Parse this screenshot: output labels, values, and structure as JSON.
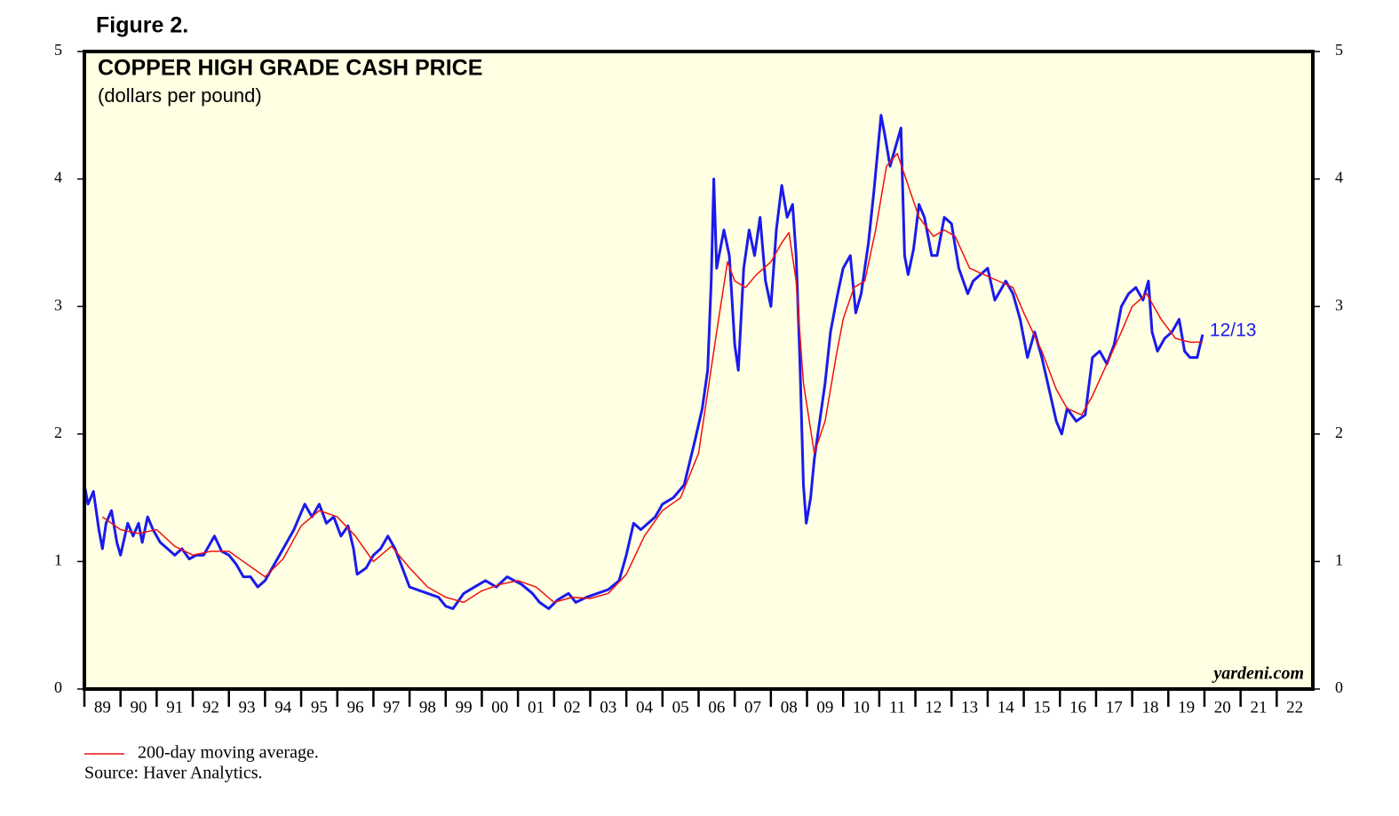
{
  "chart_data": {
    "type": "line",
    "figure_label": "Figure 2.",
    "title": "COPPER HIGH GRADE CASH PRICE",
    "subtitle": "(dollars per pound)",
    "watermark": "yardeni.com",
    "source": "Source: Haver Analytics.",
    "annotation": "12/13",
    "xlim": [
      1989,
      2023
    ],
    "ylim": [
      0,
      5
    ],
    "yticks": [
      0,
      1,
      2,
      3,
      4,
      5
    ],
    "xticks": [
      {
        "value": 1989,
        "label": "89"
      },
      {
        "value": 1990,
        "label": "90"
      },
      {
        "value": 1991,
        "label": "91"
      },
      {
        "value": 1992,
        "label": "92"
      },
      {
        "value": 1993,
        "label": "93"
      },
      {
        "value": 1994,
        "label": "94"
      },
      {
        "value": 1995,
        "label": "95"
      },
      {
        "value": 1996,
        "label": "96"
      },
      {
        "value": 1997,
        "label": "97"
      },
      {
        "value": 1998,
        "label": "98"
      },
      {
        "value": 1999,
        "label": "99"
      },
      {
        "value": 2000,
        "label": "00"
      },
      {
        "value": 2001,
        "label": "01"
      },
      {
        "value": 2002,
        "label": "02"
      },
      {
        "value": 2003,
        "label": "03"
      },
      {
        "value": 2004,
        "label": "04"
      },
      {
        "value": 2005,
        "label": "05"
      },
      {
        "value": 2006,
        "label": "06"
      },
      {
        "value": 2007,
        "label": "07"
      },
      {
        "value": 2008,
        "label": "08"
      },
      {
        "value": 2009,
        "label": "09"
      },
      {
        "value": 2010,
        "label": "10"
      },
      {
        "value": 2011,
        "label": "11"
      },
      {
        "value": 2012,
        "label": "12"
      },
      {
        "value": 2013,
        "label": "13"
      },
      {
        "value": 2014,
        "label": "14"
      },
      {
        "value": 2015,
        "label": "15"
      },
      {
        "value": 2016,
        "label": "16"
      },
      {
        "value": 2017,
        "label": "17"
      },
      {
        "value": 2018,
        "label": "18"
      },
      {
        "value": 2019,
        "label": "19"
      },
      {
        "value": 2020,
        "label": "20"
      },
      {
        "value": 2021,
        "label": "21"
      },
      {
        "value": 2022,
        "label": "22"
      }
    ],
    "series": [
      {
        "color": "#1a1aee",
        "x": [
          1989.0,
          1989.1,
          1989.25,
          1989.4,
          1989.5,
          1989.6,
          1989.75,
          1989.9,
          1990.0,
          1990.2,
          1990.35,
          1990.5,
          1990.6,
          1990.75,
          1990.9,
          1991.1,
          1991.3,
          1991.5,
          1991.7,
          1991.9,
          1992.1,
          1992.3,
          1992.6,
          1992.8,
          1993.0,
          1993.2,
          1993.4,
          1993.6,
          1993.8,
          1994.0,
          1994.2,
          1994.4,
          1994.6,
          1994.8,
          1994.95,
          1995.1,
          1995.3,
          1995.5,
          1995.7,
          1995.9,
          1996.1,
          1996.3,
          1996.45,
          1996.55,
          1996.8,
          1997.0,
          1997.2,
          1997.4,
          1997.6,
          1997.8,
          1998.0,
          1998.2,
          1998.5,
          1998.8,
          1999.0,
          1999.2,
          1999.5,
          1999.8,
          2000.1,
          2000.4,
          2000.7,
          2000.9,
          2001.1,
          2001.4,
          2001.6,
          2001.85,
          2002.1,
          2002.4,
          2002.6,
          2002.9,
          2003.2,
          2003.5,
          2003.8,
          2004.0,
          2004.2,
          2004.4,
          2004.6,
          2004.8,
          2005.0,
          2005.3,
          2005.6,
          2005.9,
          2006.1,
          2006.25,
          2006.35,
          2006.42,
          2006.5,
          2006.7,
          2006.85,
          2007.0,
          2007.1,
          2007.25,
          2007.4,
          2007.55,
          2007.7,
          2007.85,
          2008.0,
          2008.15,
          2008.3,
          2008.45,
          2008.6,
          2008.7,
          2008.8,
          2008.9,
          2008.98,
          2009.1,
          2009.2,
          2009.35,
          2009.5,
          2009.65,
          2009.85,
          2010.0,
          2010.2,
          2010.35,
          2010.5,
          2010.7,
          2010.85,
          2011.05,
          2011.15,
          2011.3,
          2011.5,
          2011.6,
          2011.7,
          2011.8,
          2011.95,
          2012.1,
          2012.25,
          2012.45,
          2012.6,
          2012.8,
          2013.0,
          2013.2,
          2013.45,
          2013.6,
          2013.8,
          2014.0,
          2014.2,
          2014.5,
          2014.7,
          2014.9,
          2015.1,
          2015.3,
          2015.5,
          2015.7,
          2015.9,
          2016.05,
          2016.2,
          2016.45,
          2016.7,
          2016.9,
          2017.1,
          2017.3,
          2017.5,
          2017.7,
          2017.9,
          2018.1,
          2018.3,
          2018.45,
          2018.55,
          2018.7,
          2018.9,
          2019.1,
          2019.3,
          2019.45,
          2019.6,
          2019.8,
          2019.95
        ],
        "values": [
          1.6,
          1.45,
          1.55,
          1.25,
          1.1,
          1.3,
          1.4,
          1.15,
          1.05,
          1.3,
          1.2,
          1.3,
          1.15,
          1.35,
          1.25,
          1.15,
          1.1,
          1.05,
          1.1,
          1.02,
          1.05,
          1.05,
          1.2,
          1.08,
          1.05,
          0.98,
          0.88,
          0.88,
          0.8,
          0.85,
          0.95,
          1.05,
          1.15,
          1.25,
          1.35,
          1.45,
          1.35,
          1.45,
          1.3,
          1.35,
          1.2,
          1.28,
          1.1,
          0.9,
          0.95,
          1.05,
          1.1,
          1.2,
          1.1,
          0.95,
          0.8,
          0.78,
          0.75,
          0.72,
          0.65,
          0.63,
          0.75,
          0.8,
          0.85,
          0.8,
          0.88,
          0.85,
          0.82,
          0.75,
          0.68,
          0.63,
          0.7,
          0.75,
          0.68,
          0.72,
          0.75,
          0.78,
          0.85,
          1.05,
          1.3,
          1.25,
          1.3,
          1.35,
          1.45,
          1.5,
          1.6,
          1.95,
          2.2,
          2.5,
          3.2,
          4.0,
          3.3,
          3.6,
          3.4,
          2.7,
          2.5,
          3.3,
          3.6,
          3.4,
          3.7,
          3.2,
          3.0,
          3.6,
          3.95,
          3.7,
          3.8,
          3.4,
          2.6,
          1.6,
          1.3,
          1.5,
          1.8,
          2.1,
          2.4,
          2.8,
          3.1,
          3.3,
          3.4,
          2.95,
          3.1,
          3.5,
          3.9,
          4.5,
          4.35,
          4.1,
          4.3,
          4.4,
          3.4,
          3.25,
          3.45,
          3.8,
          3.7,
          3.4,
          3.4,
          3.7,
          3.65,
          3.3,
          3.1,
          3.2,
          3.25,
          3.3,
          3.05,
          3.2,
          3.1,
          2.9,
          2.6,
          2.8,
          2.6,
          2.35,
          2.1,
          2.0,
          2.2,
          2.1,
          2.15,
          2.6,
          2.65,
          2.55,
          2.7,
          3.0,
          3.1,
          3.15,
          3.05,
          3.2,
          2.8,
          2.65,
          2.75,
          2.8,
          2.9,
          2.65,
          2.6,
          2.6,
          2.78
        ]
      },
      {
        "name": "200-day moving average.",
        "color": "#ee1111",
        "x": [
          1989.5,
          1990.0,
          1990.5,
          1991.0,
          1991.5,
          1992.0,
          1992.5,
          1993.0,
          1993.5,
          1994.0,
          1994.5,
          1995.0,
          1995.5,
          1996.0,
          1996.5,
          1997.0,
          1997.5,
          1998.0,
          1998.5,
          1999.0,
          1999.5,
          2000.0,
          2000.5,
          2001.0,
          2001.5,
          2002.0,
          2002.5,
          2003.0,
          2003.5,
          2004.0,
          2004.5,
          2005.0,
          2005.5,
          2006.0,
          2006.5,
          2006.8,
          2007.0,
          2007.3,
          2007.6,
          2008.0,
          2008.3,
          2008.5,
          2008.7,
          2008.9,
          2009.2,
          2009.5,
          2009.8,
          2010.0,
          2010.3,
          2010.6,
          2010.9,
          2011.2,
          2011.5,
          2011.8,
          2012.1,
          2012.5,
          2012.8,
          2013.1,
          2013.5,
          2013.9,
          2014.3,
          2014.7,
          2015.0,
          2015.5,
          2015.9,
          2016.2,
          2016.6,
          2016.9,
          2017.3,
          2017.7,
          2018.0,
          2018.4,
          2018.8,
          2019.2,
          2019.6,
          2019.95
        ],
        "values": [
          1.35,
          1.25,
          1.22,
          1.25,
          1.12,
          1.05,
          1.08,
          1.08,
          0.98,
          0.88,
          1.02,
          1.28,
          1.4,
          1.35,
          1.2,
          1.0,
          1.12,
          0.95,
          0.8,
          0.72,
          0.68,
          0.77,
          0.82,
          0.85,
          0.8,
          0.68,
          0.72,
          0.71,
          0.75,
          0.9,
          1.2,
          1.4,
          1.5,
          1.85,
          2.8,
          3.35,
          3.2,
          3.15,
          3.25,
          3.35,
          3.5,
          3.58,
          3.2,
          2.4,
          1.85,
          2.1,
          2.6,
          2.9,
          3.15,
          3.2,
          3.6,
          4.1,
          4.2,
          3.95,
          3.7,
          3.55,
          3.6,
          3.55,
          3.3,
          3.25,
          3.2,
          3.15,
          2.95,
          2.65,
          2.35,
          2.2,
          2.15,
          2.3,
          2.55,
          2.8,
          3.0,
          3.1,
          2.9,
          2.75,
          2.72,
          2.72
        ]
      }
    ]
  }
}
